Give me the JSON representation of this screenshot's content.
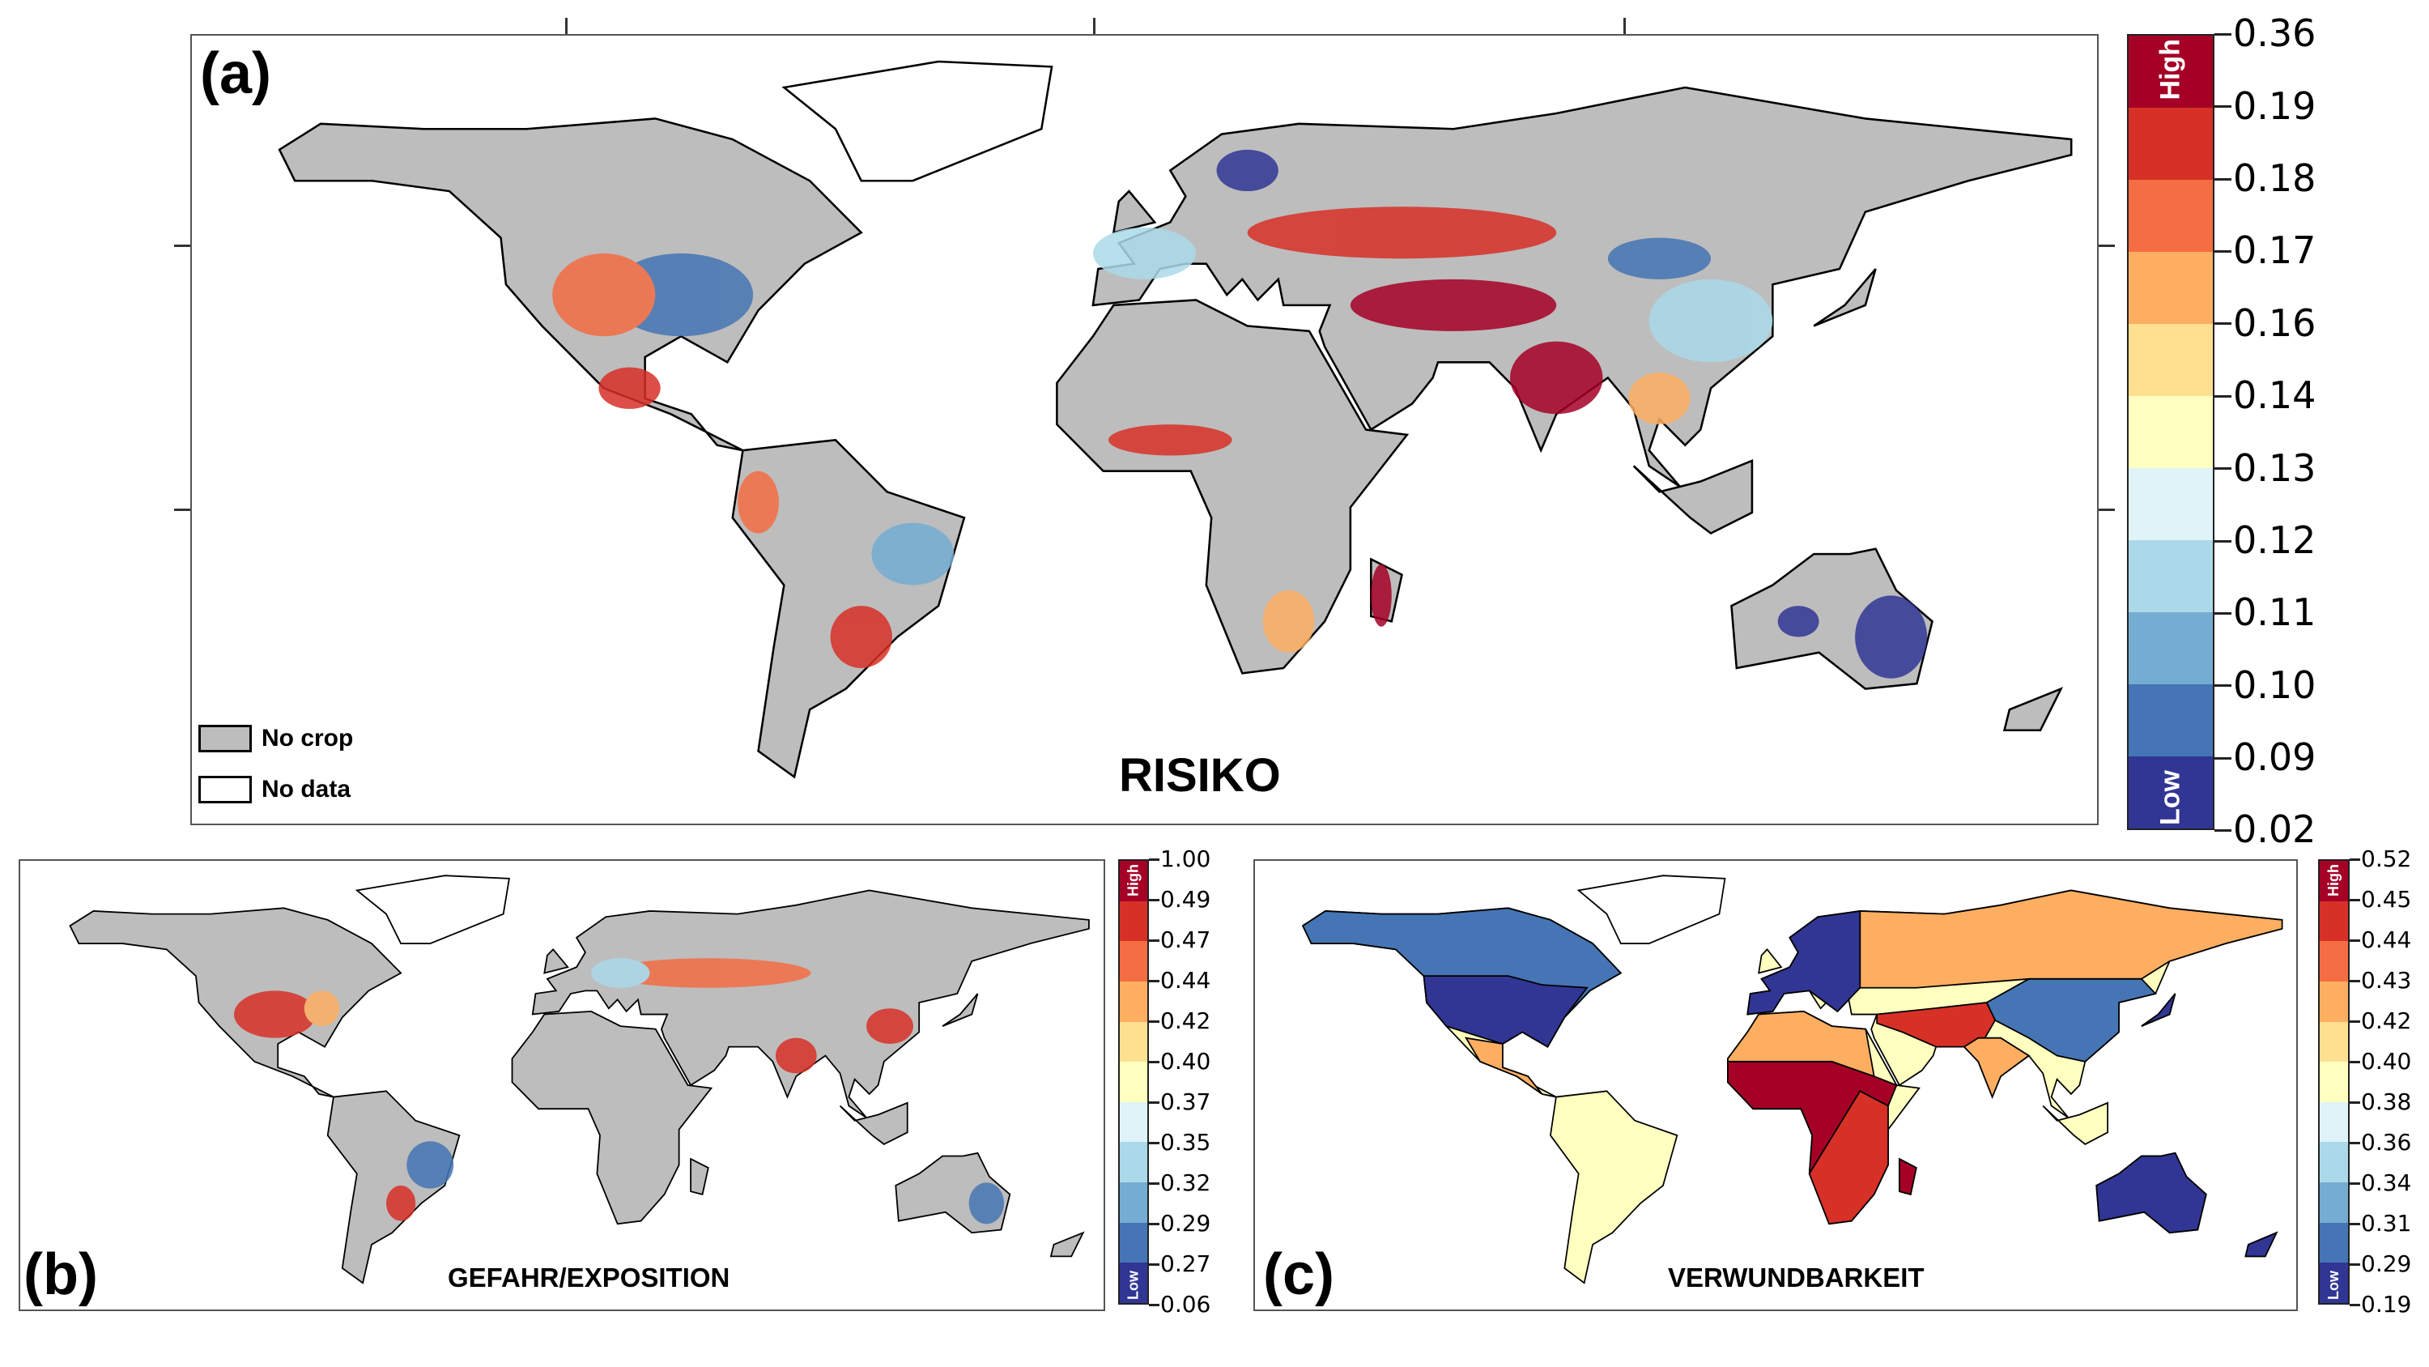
{
  "colors": [
    "#a50026",
    "#d73027",
    "#f46d43",
    "#fdae61",
    "#fee090",
    "#ffffbf",
    "#e0f3f8",
    "#abd9e9",
    "#74add1",
    "#4575b4",
    "#313695"
  ],
  "no_crop_color": "#bdbdbd",
  "end_labels": {
    "high": "High",
    "low": "Low"
  },
  "legend": {
    "no_crop": "No crop",
    "no_data": "No data"
  },
  "panels": {
    "a": {
      "label": "(a)",
      "title": "RISIKO",
      "ticks": [
        "0.36",
        "0.19",
        "0.18",
        "0.17",
        "0.16",
        "0.14",
        "0.13",
        "0.12",
        "0.11",
        "0.10",
        "0.09",
        "0.02"
      ]
    },
    "b": {
      "label": "(b)",
      "title": "GEFAHR/EXPOSITION",
      "ticks": [
        "1.00",
        "0.49",
        "0.47",
        "0.44",
        "0.42",
        "0.40",
        "0.37",
        "0.35",
        "0.32",
        "0.29",
        "0.27",
        "0.06"
      ]
    },
    "c": {
      "label": "(c)",
      "title": "VERWUNDBARKEIT",
      "ticks": [
        "0.52",
        "0.45",
        "0.44",
        "0.43",
        "0.42",
        "0.40",
        "0.38",
        "0.36",
        "0.34",
        "0.31",
        "0.29",
        "0.19"
      ]
    }
  }
}
